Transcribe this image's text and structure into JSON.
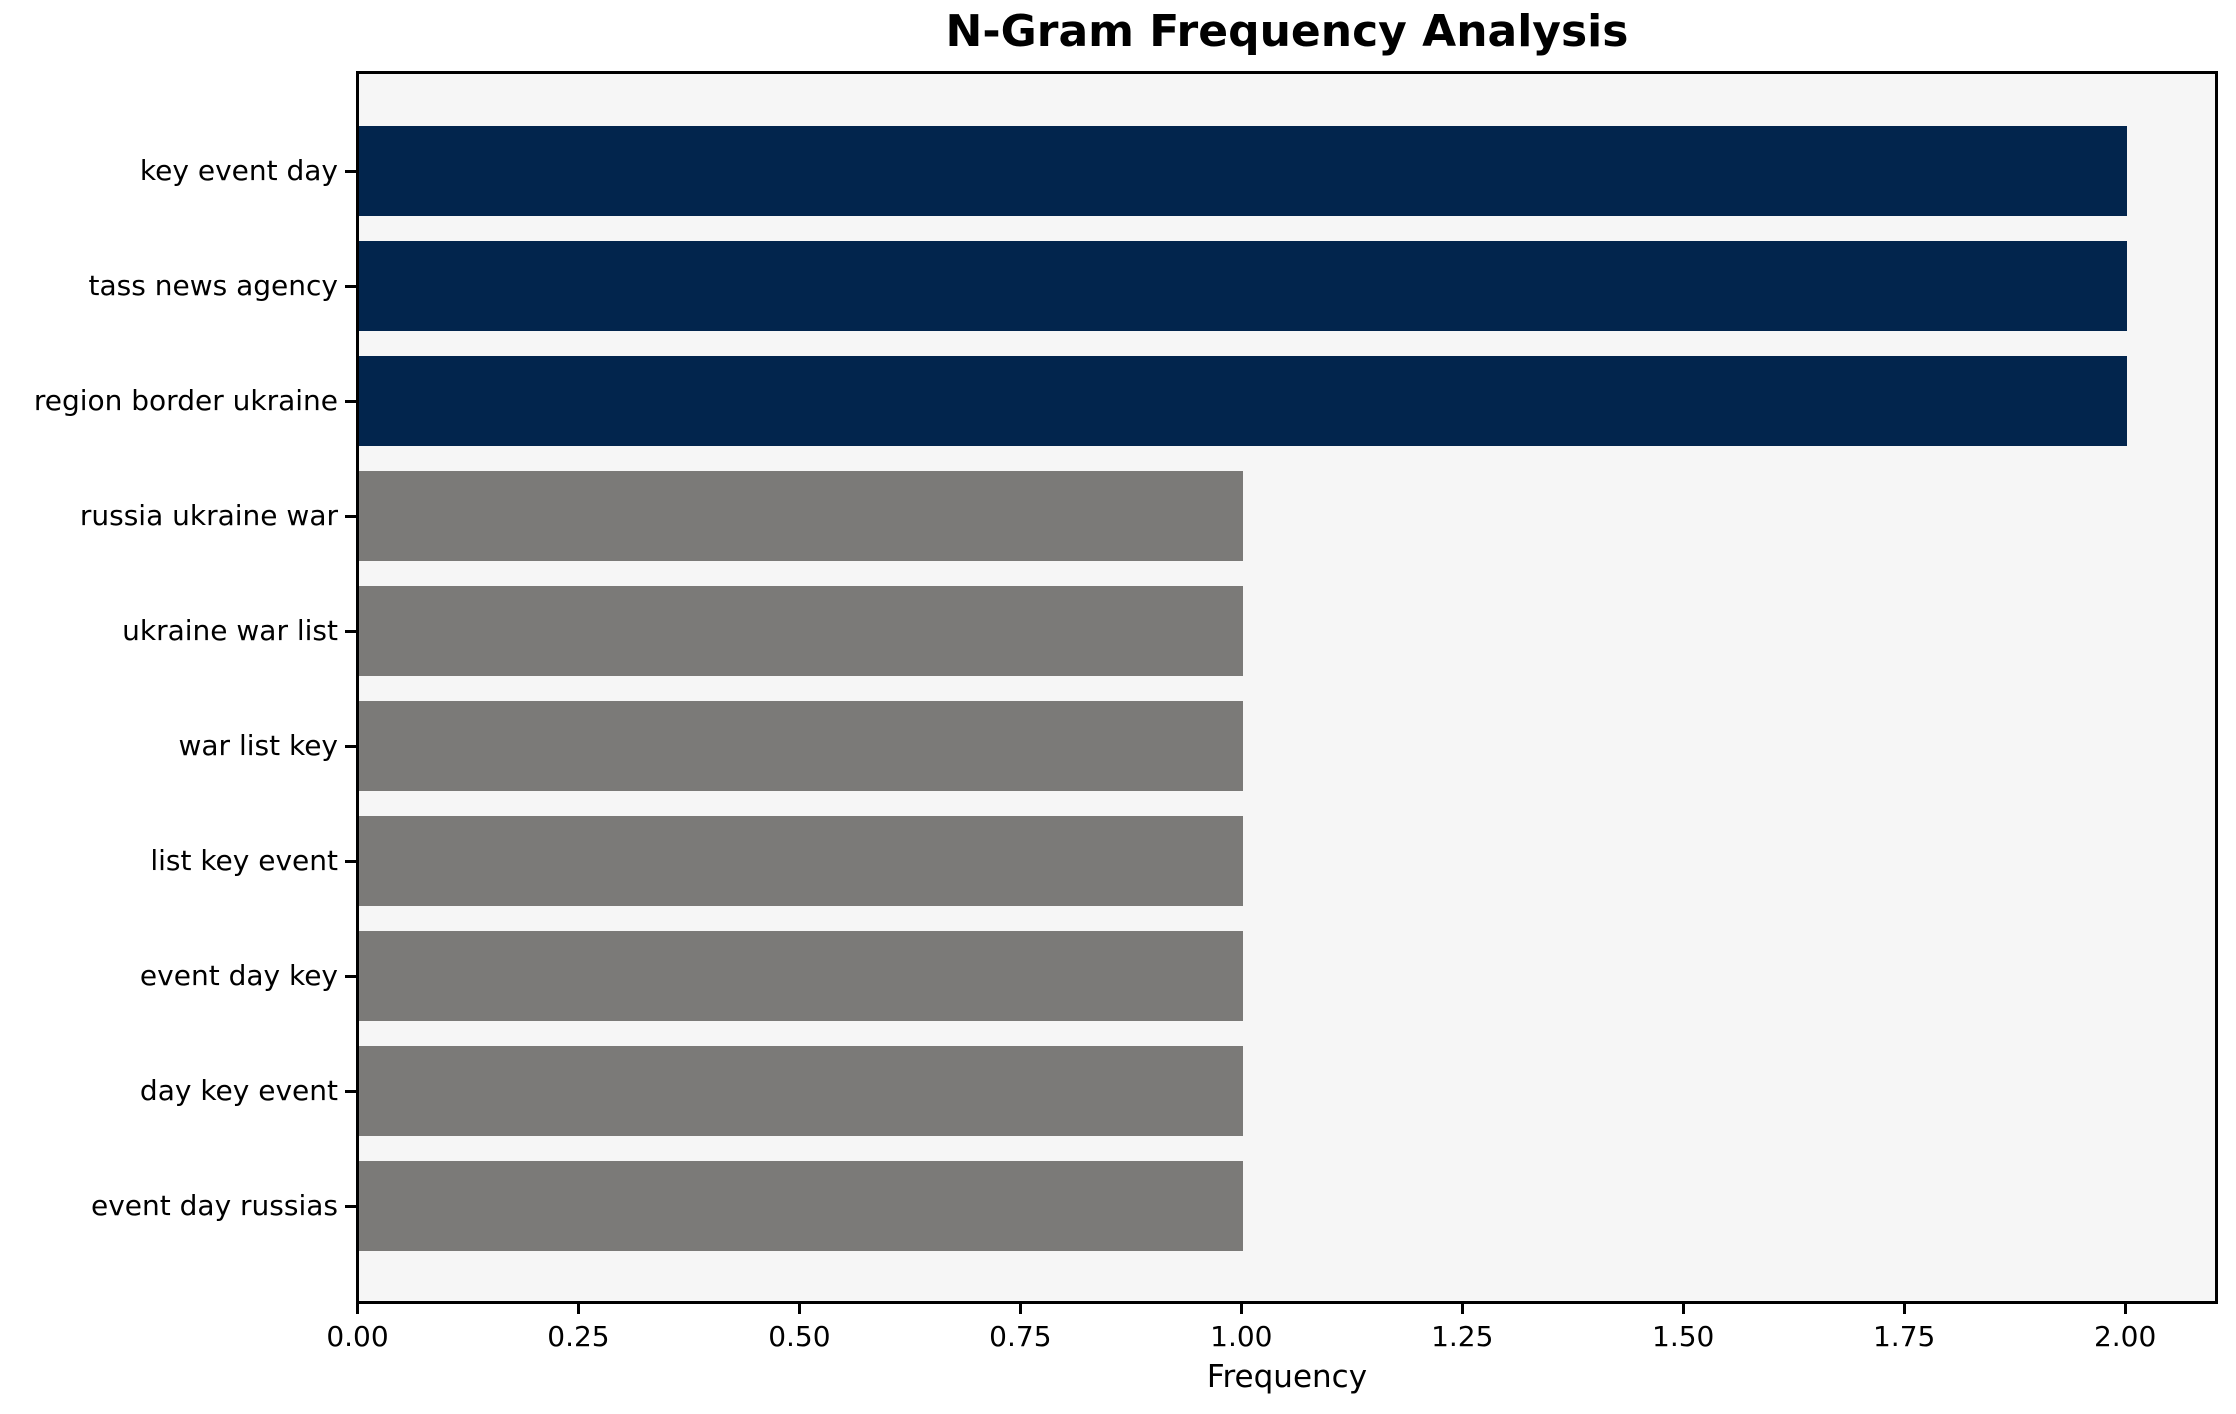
{
  "figure": {
    "background": "#ffffff",
    "plot_background": "#f6f6f6",
    "spine_color": "#000000",
    "text_color": "#000000"
  },
  "chart_data": {
    "type": "bar",
    "orientation": "horizontal",
    "title": "N-Gram Frequency Analysis",
    "xlabel": "Frequency",
    "ylabel": "",
    "categories": [
      "key event day",
      "tass news agency",
      "region border ukraine",
      "russia ukraine war",
      "ukraine war list",
      "war list key",
      "list key event",
      "event day key",
      "day key event",
      "event day russias"
    ],
    "values": [
      2,
      2,
      2,
      1,
      1,
      1,
      1,
      1,
      1,
      1
    ],
    "bar_colors": [
      "#02254d",
      "#02254d",
      "#02254d",
      "#7b7a78",
      "#7b7a78",
      "#7b7a78",
      "#7b7a78",
      "#7b7a78",
      "#7b7a78",
      "#7b7a78"
    ],
    "highlight_color": "#02254d",
    "default_color": "#7b7a78",
    "xlim": [
      0,
      2.1
    ],
    "xtick_values": [
      0,
      0.25,
      0.5,
      0.75,
      1.0,
      1.25,
      1.5,
      1.75,
      2.0
    ],
    "xtick_labels": [
      "0.00",
      "0.25",
      "0.50",
      "0.75",
      "1.00",
      "1.25",
      "1.50",
      "1.75",
      "2.00"
    ],
    "grid": false,
    "legend": "none"
  }
}
